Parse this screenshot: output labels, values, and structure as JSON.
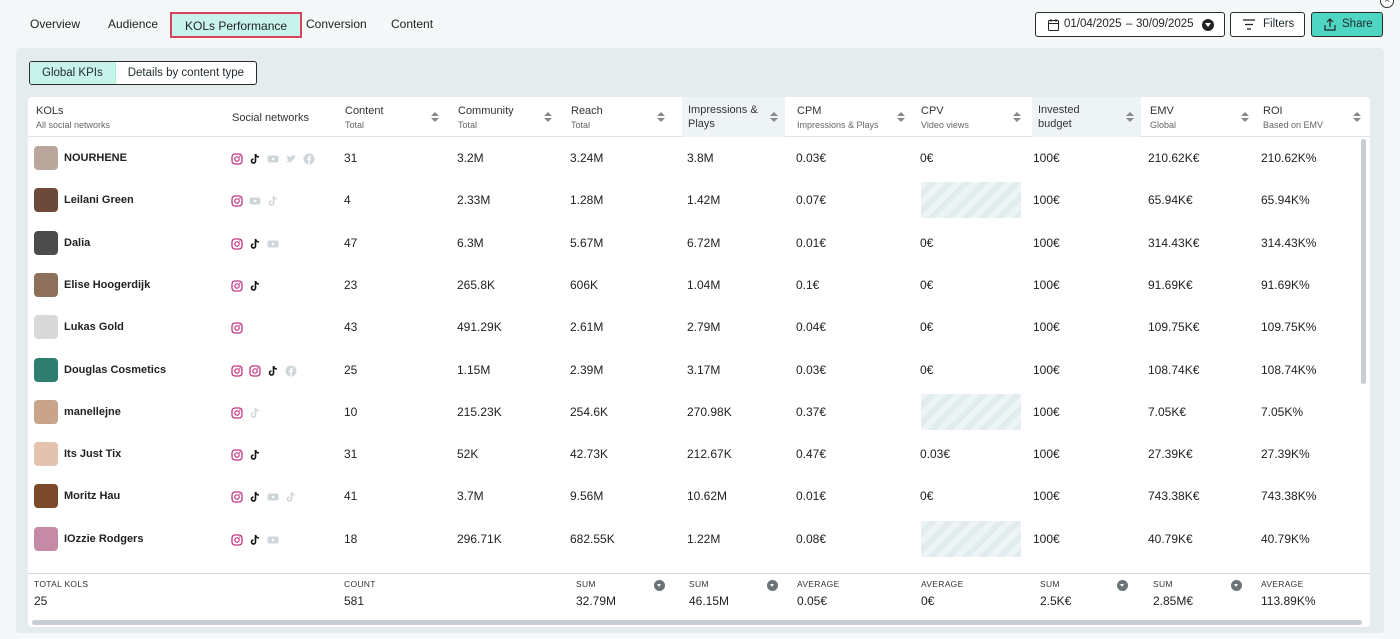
{
  "nav": {
    "tabs": [
      {
        "label": "Overview"
      },
      {
        "label": "Audience"
      },
      {
        "label": "KOLs Performance",
        "active": true
      },
      {
        "label": "Conversion"
      },
      {
        "label": "Content"
      }
    ],
    "date_start": "01/04/2025",
    "date_sep": "–",
    "date_end": "30/09/2025",
    "filters_label": "Filters",
    "share_label": "Share"
  },
  "view_toggle": {
    "options": [
      "Global KPIs",
      "Details by content type"
    ],
    "selected": "Global KPIs"
  },
  "table": {
    "columns": [
      {
        "title": "KOLs",
        "subtitle": "All social networks"
      },
      {
        "title": "Social networks",
        "subtitle": ""
      },
      {
        "title": "Content",
        "subtitle": "Total"
      },
      {
        "title": "Community",
        "subtitle": "Total"
      },
      {
        "title": "Reach",
        "subtitle": "Total"
      },
      {
        "title": "Impressions &",
        "subtitle": "Plays"
      },
      {
        "title": "CPM",
        "subtitle": "Impressions & Plays"
      },
      {
        "title": "CPV",
        "subtitle": "Video views"
      },
      {
        "title": "Invested",
        "subtitle": "budget"
      },
      {
        "title": "EMV",
        "subtitle": "Global"
      },
      {
        "title": "ROI",
        "subtitle": "Based on EMV"
      }
    ],
    "rows": [
      {
        "name": "NOURHENE",
        "networks": [
          "instagram-icon",
          "tiktok-icon",
          "youtube-icon",
          "twitter-icon",
          "facebook-icon"
        ],
        "content": "31",
        "community": "3.2M",
        "reach": "3.24M",
        "impressions": "3.8M",
        "cpm": "0.03€",
        "cpv": "0€",
        "budget": "100€",
        "emv": "210.62K€",
        "roi": "210.62K%"
      },
      {
        "name": "Leilani Green",
        "networks": [
          "instagram-icon",
          "youtube-icon",
          "tiktok-icon"
        ],
        "content": "4",
        "community": "2.33M",
        "reach": "1.28M",
        "impressions": "1.42M",
        "cpm": "0.07€",
        "cpv": "",
        "budget": "100€",
        "emv": "65.94K€",
        "roi": "65.94K%"
      },
      {
        "name": "Dalia",
        "networks": [
          "instagram-icon",
          "tiktok-icon",
          "youtube-icon"
        ],
        "content": "47",
        "community": "6.3M",
        "reach": "5.67M",
        "impressions": "6.72M",
        "cpm": "0.01€",
        "cpv": "0€",
        "budget": "100€",
        "emv": "314.43K€",
        "roi": "314.43K%"
      },
      {
        "name": "Elise Hoogerdijk",
        "networks": [
          "instagram-icon",
          "tiktok-icon"
        ],
        "content": "23",
        "community": "265.8K",
        "reach": "606K",
        "impressions": "1.04M",
        "cpm": "0.1€",
        "cpv": "0€",
        "budget": "100€",
        "emv": "91.69K€",
        "roi": "91.69K%"
      },
      {
        "name": "Lukas Gold",
        "networks": [
          "instagram-icon"
        ],
        "content": "43",
        "community": "491.29K",
        "reach": "2.61M",
        "impressions": "2.79M",
        "cpm": "0.04€",
        "cpv": "0€",
        "budget": "100€",
        "emv": "109.75K€",
        "roi": "109.75K%"
      },
      {
        "name": "Douglas Cosmetics",
        "networks": [
          "instagram-icon",
          "instagram-icon",
          "tiktok-icon",
          "facebook-icon"
        ],
        "content": "25",
        "community": "1.15M",
        "reach": "2.39M",
        "impressions": "3.17M",
        "cpm": "0.03€",
        "cpv": "0€",
        "budget": "100€",
        "emv": "108.74K€",
        "roi": "108.74K%"
      },
      {
        "name": "manellejne",
        "networks": [
          "instagram-icon",
          "tiktok-icon"
        ],
        "content": "10",
        "community": "215.23K",
        "reach": "254.6K",
        "impressions": "270.98K",
        "cpm": "0.37€",
        "cpv": "",
        "budget": "100€",
        "emv": "7.05K€",
        "roi": "7.05K%"
      },
      {
        "name": "Its Just Tix",
        "networks": [
          "instagram-icon",
          "tiktok-icon"
        ],
        "content": "31",
        "community": "52K",
        "reach": "42.73K",
        "impressions": "212.67K",
        "cpm": "0.47€",
        "cpv": "0.03€",
        "budget": "100€",
        "emv": "27.39K€",
        "roi": "27.39K%"
      },
      {
        "name": "Moritz Hau",
        "networks": [
          "instagram-icon",
          "tiktok-icon",
          "youtube-icon",
          "tiktok-icon"
        ],
        "content": "41",
        "community": "3.7M",
        "reach": "9.56M",
        "impressions": "10.62M",
        "cpm": "0.01€",
        "cpv": "0€",
        "budget": "100€",
        "emv": "743.38K€",
        "roi": "743.38K%"
      },
      {
        "name": "IOzzie Rodgers",
        "networks": [
          "instagram-icon",
          "tiktok-icon",
          "youtube-icon"
        ],
        "content": "18",
        "community": "296.71K",
        "reach": "682.55K",
        "impressions": "1.22M",
        "cpm": "0.08€",
        "cpv": "",
        "budget": "100€",
        "emv": "40.79K€",
        "roi": "40.79K%"
      }
    ],
    "footer": {
      "kols": {
        "label": "TOTAL KOLS",
        "value": "25"
      },
      "content": {
        "label": "COUNT",
        "value": "581"
      },
      "reach": {
        "label": "SUM",
        "value": "32.79M"
      },
      "impressions": {
        "label": "SUM",
        "value": "46.15M"
      },
      "cpm": {
        "label": "AVERAGE",
        "value": "0.05€"
      },
      "cpv": {
        "label": "AVERAGE",
        "value": "0€"
      },
      "budget": {
        "label": "SUM",
        "value": "2.5K€"
      },
      "emv": {
        "label": "SUM",
        "value": "2.85M€"
      },
      "roi": {
        "label": "AVERAGE",
        "value": "113.89K%"
      }
    }
  },
  "colors": {
    "accent": "#4fd6c2",
    "active_tab_bg": "#c8f2ec",
    "active_tab_border": "#d7435b",
    "instagram": "#c13584",
    "tiktok": "#111111",
    "muted_icon": "#cfd6d9"
  }
}
